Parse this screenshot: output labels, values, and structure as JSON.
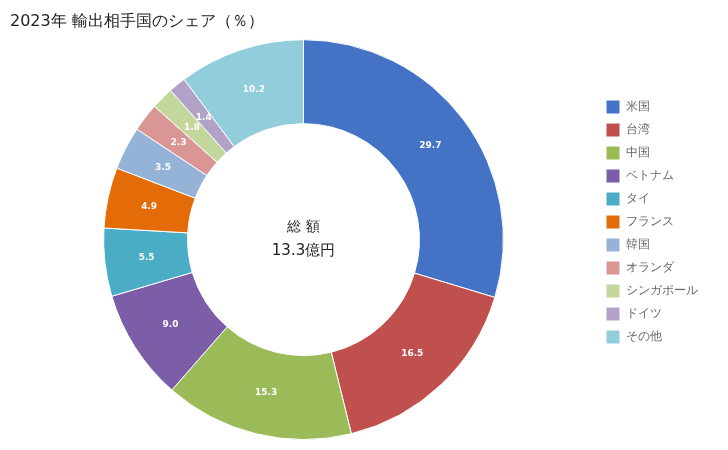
{
  "chart_data": {
    "type": "donut",
    "title": "2023年 輸出相手国のシェア（％）",
    "annotations": [
      "総 額",
      "13.3億円"
    ],
    "categories": [
      "米国",
      "台湾",
      "中国",
      "ベトナム",
      "タイ",
      "フランス",
      "韓国",
      "オランダ",
      "シンガポール",
      "ドイツ",
      "その他"
    ],
    "values": [
      29.7,
      16.5,
      15.3,
      9.0,
      5.5,
      4.9,
      3.5,
      2.3,
      1.8,
      1.4,
      10.2
    ],
    "value_labels": [
      "29.7",
      "16.5",
      "15.3",
      "9.0",
      "5.5",
      "4.9",
      "3.5",
      "2.3",
      "1.8",
      "1.4",
      "10.2"
    ],
    "colors": [
      "#4472C4",
      "#C0504D",
      "#9BBB59",
      "#7B5EA7",
      "#4BACC6",
      "#E36C09",
      "#95B3D7",
      "#D99694",
      "#C3D69B",
      "#B3A2C7",
      "#92CDDC"
    ],
    "data_labels": true,
    "legend": "right"
  }
}
